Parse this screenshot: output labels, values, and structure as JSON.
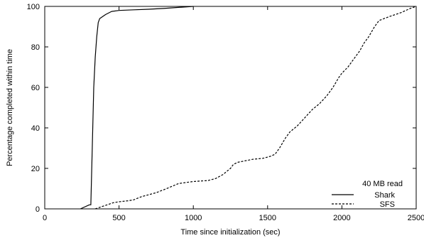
{
  "chart_data": {
    "type": "line",
    "title": "",
    "xlabel": "Time since initialization (sec)",
    "ylabel": "Percentage completed within time",
    "xlim": [
      0,
      2500
    ],
    "ylim": [
      0,
      100
    ],
    "xticks": [
      0,
      500,
      1000,
      1500,
      2000,
      2500
    ],
    "yticks": [
      0,
      20,
      40,
      60,
      80,
      100
    ],
    "grid": false,
    "legend_title": "40 MB read",
    "legend_position": "bottom-right",
    "series": [
      {
        "name": "Shark",
        "line_style": "solid",
        "points": [
          [
            240,
            0
          ],
          [
            300,
            2
          ],
          [
            310,
            2
          ],
          [
            320,
            30
          ],
          [
            330,
            60
          ],
          [
            340,
            75
          ],
          [
            350,
            85
          ],
          [
            360,
            92
          ],
          [
            370,
            94
          ],
          [
            390,
            95
          ],
          [
            410,
            96
          ],
          [
            450,
            97.5
          ],
          [
            500,
            98
          ],
          [
            600,
            98.3
          ],
          [
            700,
            98.6
          ],
          [
            800,
            99
          ],
          [
            900,
            99.5
          ],
          [
            1000,
            100
          ]
        ]
      },
      {
        "name": "SFS",
        "line_style": "dashed",
        "points": [
          [
            340,
            0
          ],
          [
            380,
            1
          ],
          [
            420,
            2
          ],
          [
            460,
            3
          ],
          [
            500,
            3.5
          ],
          [
            560,
            4
          ],
          [
            600,
            4.5
          ],
          [
            650,
            6
          ],
          [
            700,
            7
          ],
          [
            750,
            8
          ],
          [
            820,
            10
          ],
          [
            900,
            12.5
          ],
          [
            950,
            13
          ],
          [
            1000,
            13.5
          ],
          [
            1100,
            14
          ],
          [
            1150,
            15
          ],
          [
            1200,
            17
          ],
          [
            1250,
            20
          ],
          [
            1270,
            22
          ],
          [
            1300,
            23
          ],
          [
            1400,
            24.5
          ],
          [
            1470,
            25
          ],
          [
            1520,
            26
          ],
          [
            1550,
            27
          ],
          [
            1580,
            30
          ],
          [
            1620,
            35
          ],
          [
            1650,
            38
          ],
          [
            1700,
            41
          ],
          [
            1750,
            45
          ],
          [
            1800,
            49
          ],
          [
            1850,
            52
          ],
          [
            1900,
            56
          ],
          [
            1940,
            60
          ],
          [
            1980,
            65
          ],
          [
            2000,
            67
          ],
          [
            2040,
            70
          ],
          [
            2080,
            74
          ],
          [
            2120,
            78
          ],
          [
            2150,
            82
          ],
          [
            2180,
            85
          ],
          [
            2220,
            90
          ],
          [
            2250,
            93
          ],
          [
            2320,
            95
          ],
          [
            2400,
            97
          ],
          [
            2460,
            99
          ],
          [
            2500,
            100
          ]
        ]
      }
    ]
  }
}
